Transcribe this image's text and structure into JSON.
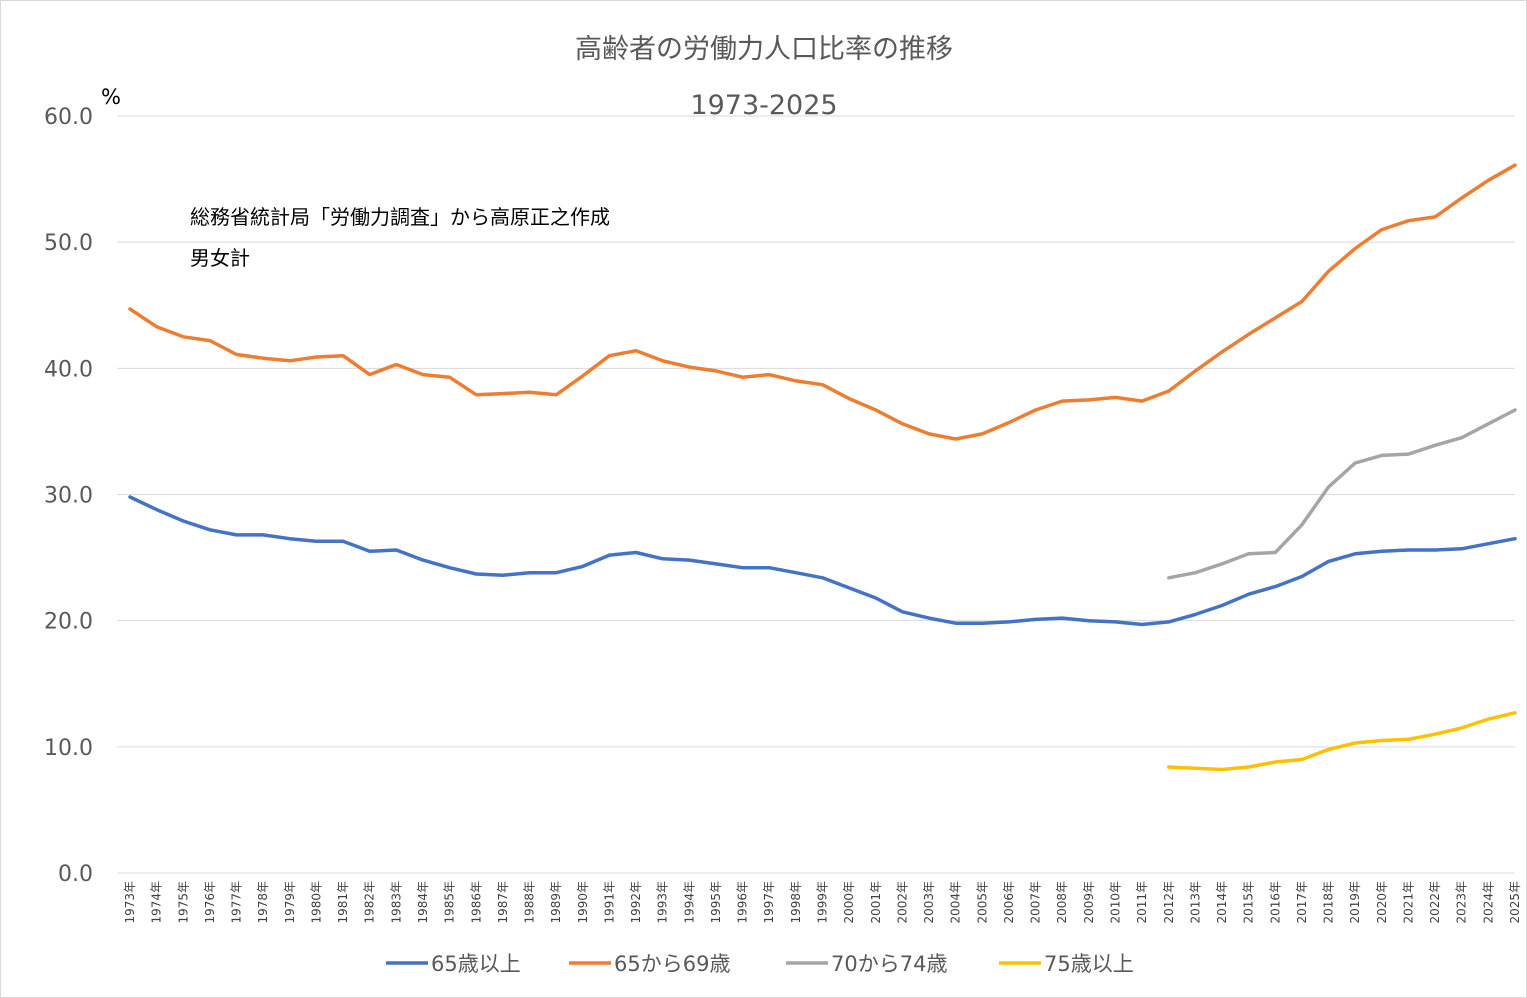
{
  "chart_data": {
    "type": "line",
    "title": "高齢者の労働力人口比率の推移",
    "subtitle": "1973-2025",
    "ylabel": "%",
    "ylim": [
      0,
      60
    ],
    "yticks": [
      "0.0",
      "10.0",
      "20.0",
      "30.0",
      "40.0",
      "50.0",
      "60.0"
    ],
    "grid": true,
    "legend_position": "bottom",
    "annotations": [
      "総務省統計局「労働力調査」から高原正之作成",
      "男女計"
    ],
    "categories": [
      "1973年",
      "1974年",
      "1975年",
      "1976年",
      "1977年",
      "1978年",
      "1979年",
      "1980年",
      "1981年",
      "1982年",
      "1983年",
      "1984年",
      "1985年",
      "1986年",
      "1987年",
      "1988年",
      "1989年",
      "1990年",
      "1991年",
      "1992年",
      "1993年",
      "1994年",
      "1995年",
      "1996年",
      "1997年",
      "1998年",
      "1999年",
      "2000年",
      "2001年",
      "2002年",
      "2003年",
      "2004年",
      "2005年",
      "2006年",
      "2007年",
      "2008年",
      "2009年",
      "2010年",
      "2011年",
      "2012年",
      "2013年",
      "2014年",
      "2015年",
      "2016年",
      "2017年",
      "2018年",
      "2019年",
      "2020年",
      "2021年",
      "2022年",
      "2023年",
      "2024年",
      "2025年"
    ],
    "series": [
      {
        "name": "65歳以上",
        "color": "#4472c4",
        "values": [
          29.8,
          28.8,
          27.9,
          27.2,
          26.8,
          26.8,
          26.5,
          26.3,
          26.3,
          25.5,
          25.6,
          24.8,
          24.2,
          23.7,
          23.6,
          23.8,
          23.8,
          24.3,
          25.2,
          25.4,
          24.9,
          24.8,
          24.5,
          24.2,
          24.2,
          23.8,
          23.4,
          22.6,
          21.8,
          20.7,
          20.2,
          19.8,
          19.8,
          19.9,
          20.1,
          20.2,
          20.0,
          19.9,
          19.7,
          19.9,
          20.5,
          21.2,
          22.1,
          22.7,
          23.5,
          24.7,
          25.3,
          25.5,
          25.6,
          25.6,
          25.7,
          26.1,
          26.5
        ]
      },
      {
        "name": "65から69歳",
        "color": "#ed7d31",
        "values": [
          44.7,
          43.3,
          42.5,
          42.2,
          41.1,
          40.8,
          40.6,
          40.9,
          41.0,
          39.5,
          40.3,
          39.5,
          39.3,
          37.9,
          38.0,
          38.1,
          37.9,
          39.4,
          41.0,
          41.4,
          40.6,
          40.1,
          39.8,
          39.3,
          39.5,
          39.0,
          38.7,
          37.6,
          36.7,
          35.6,
          34.8,
          34.4,
          34.8,
          35.7,
          36.7,
          37.4,
          37.5,
          37.7,
          37.4,
          38.2,
          39.8,
          41.3,
          42.7,
          44.0,
          45.3,
          47.7,
          49.5,
          51.0,
          51.7,
          52.0,
          53.5,
          54.9,
          56.1
        ]
      },
      {
        "name": "70から74歳",
        "color": "#a5a5a5",
        "values": [
          null,
          null,
          null,
          null,
          null,
          null,
          null,
          null,
          null,
          null,
          null,
          null,
          null,
          null,
          null,
          null,
          null,
          null,
          null,
          null,
          null,
          null,
          null,
          null,
          null,
          null,
          null,
          null,
          null,
          null,
          null,
          null,
          null,
          null,
          null,
          null,
          null,
          null,
          null,
          23.4,
          23.8,
          24.5,
          25.3,
          25.4,
          27.6,
          30.6,
          32.5,
          33.1,
          33.2,
          33.9,
          34.5,
          35.6,
          36.7
        ]
      },
      {
        "name": "75歳以上",
        "color": "#ffc000",
        "values": [
          null,
          null,
          null,
          null,
          null,
          null,
          null,
          null,
          null,
          null,
          null,
          null,
          null,
          null,
          null,
          null,
          null,
          null,
          null,
          null,
          null,
          null,
          null,
          null,
          null,
          null,
          null,
          null,
          null,
          null,
          null,
          null,
          null,
          null,
          null,
          null,
          null,
          null,
          null,
          8.4,
          8.3,
          8.2,
          8.4,
          8.8,
          9.0,
          9.8,
          10.3,
          10.5,
          10.6,
          11.0,
          11.5,
          12.2,
          12.7
        ]
      }
    ]
  }
}
